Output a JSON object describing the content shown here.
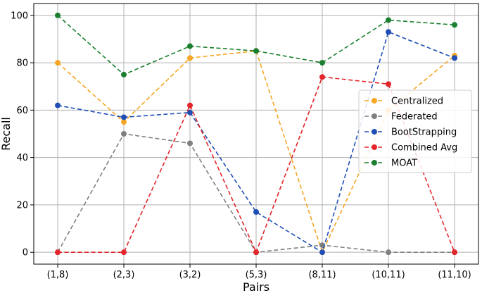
{
  "chart_data": {
    "type": "line",
    "xlabel": "Pairs",
    "ylabel": "Recall",
    "categories": [
      "(1,8)",
      "(2,3)",
      "(3,2)",
      "(5,3)",
      "(8,11)",
      "(10,11)",
      "(11,10)"
    ],
    "ylim": [
      -5,
      105
    ],
    "yticks": [
      0,
      20,
      40,
      60,
      80,
      100
    ],
    "grid": true,
    "legend_position": "center-right",
    "line_style": "dashed",
    "marker": "circle",
    "series": [
      {
        "name": "Centralized",
        "color": "#F5A623",
        "values": [
          80,
          55,
          82,
          85,
          0,
          60,
          83
        ]
      },
      {
        "name": "Federated",
        "color": "#808080",
        "values": [
          0,
          50,
          46,
          0,
          3,
          0,
          0
        ]
      },
      {
        "name": "BootStrapping",
        "color": "#1F4FB5",
        "values": [
          62,
          57,
          59,
          17,
          0,
          93,
          82
        ]
      },
      {
        "name": "Combined Avg",
        "color": "#E3262B",
        "values": [
          0,
          0,
          62,
          0,
          74,
          71,
          0
        ]
      },
      {
        "name": "MOAT",
        "color": "#1A7F2E",
        "values": [
          100,
          75,
          87,
          85,
          80,
          98,
          96
        ]
      }
    ]
  }
}
